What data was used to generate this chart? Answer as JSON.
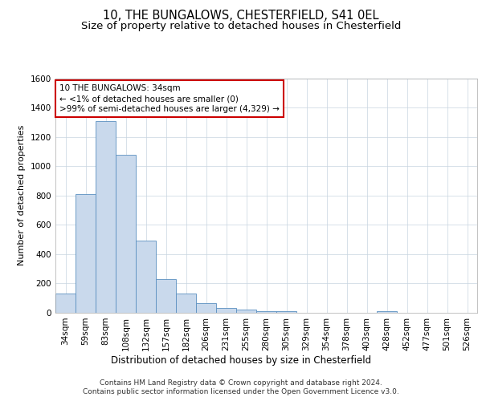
{
  "title": "10, THE BUNGALOWS, CHESTERFIELD, S41 0EL",
  "subtitle": "Size of property relative to detached houses in Chesterfield",
  "xlabel": "Distribution of detached houses by size in Chesterfield",
  "ylabel": "Number of detached properties",
  "categories": [
    "34sqm",
    "59sqm",
    "83sqm",
    "108sqm",
    "132sqm",
    "157sqm",
    "182sqm",
    "206sqm",
    "231sqm",
    "255sqm",
    "280sqm",
    "305sqm",
    "329sqm",
    "354sqm",
    "378sqm",
    "403sqm",
    "428sqm",
    "452sqm",
    "477sqm",
    "501sqm",
    "526sqm"
  ],
  "values": [
    130,
    810,
    1310,
    1080,
    490,
    230,
    130,
    65,
    35,
    22,
    12,
    12,
    0,
    0,
    0,
    0,
    12,
    0,
    0,
    0,
    0
  ],
  "bar_color": "#c9d9ec",
  "bar_edge_color": "#5a8fc0",
  "annotation_box_color": "#cc0000",
  "annotation_line1": "10 THE BUNGALOWS: 34sqm",
  "annotation_line2": "← <1% of detached houses are smaller (0)",
  "annotation_line3": ">99% of semi-detached houses are larger (4,329) →",
  "ylim": [
    0,
    1600
  ],
  "yticks": [
    0,
    200,
    400,
    600,
    800,
    1000,
    1200,
    1400,
    1600
  ],
  "bg_color": "#ffffff",
  "grid_color": "#c8d4e0",
  "footer": "Contains HM Land Registry data © Crown copyright and database right 2024.\nContains public sector information licensed under the Open Government Licence v3.0.",
  "title_fontsize": 10.5,
  "subtitle_fontsize": 9.5,
  "annotation_fontsize": 7.5,
  "ylabel_fontsize": 8,
  "xlabel_fontsize": 8.5,
  "tick_fontsize": 7.5,
  "footer_fontsize": 6.5
}
